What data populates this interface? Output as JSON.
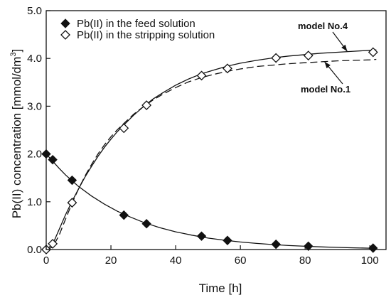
{
  "chart_data": {
    "type": "scatter",
    "xlabel": "Time [h]",
    "ylabel": "Pb(II) concentration [mmol/dm",
    "ylabel_sup": "3",
    "ylabel_end": "]",
    "xlim": [
      0,
      105
    ],
    "ylim": [
      0.0,
      5.0
    ],
    "x_ticks": [
      0,
      20,
      40,
      60,
      80,
      100
    ],
    "x_tick_labels": [
      "0",
      "20",
      "40",
      "60",
      "80",
      "100"
    ],
    "y_ticks": [
      0.0,
      1.0,
      2.0,
      3.0,
      4.0,
      5.0
    ],
    "y_tick_labels": [
      "0.0",
      "1.0",
      "2.0",
      "3.0",
      "4.0",
      "5.0"
    ],
    "grid": false,
    "legend_position": "top-left",
    "series": [
      {
        "name": "Pb(II) in the feed solution",
        "marker": "filled-diamond",
        "x": [
          0,
          2,
          8,
          24,
          31,
          48,
          56,
          71,
          81,
          101
        ],
        "y": [
          2.0,
          1.88,
          1.45,
          0.72,
          0.54,
          0.28,
          0.19,
          0.11,
          0.07,
          0.03
        ]
      },
      {
        "name": "Pb(II) in the stripping solution",
        "marker": "open-diamond",
        "x": [
          0,
          2,
          8,
          24,
          31,
          48,
          56,
          71,
          81,
          101
        ],
        "y": [
          0.0,
          0.12,
          0.98,
          2.54,
          3.02,
          3.64,
          3.79,
          4.01,
          4.06,
          4.13
        ]
      }
    ],
    "curves": [
      {
        "role": "feed model fit",
        "style": "solid",
        "x": [
          0,
          2,
          4,
          6,
          8,
          10,
          14,
          18,
          22,
          26,
          30,
          35,
          40,
          45,
          50,
          55,
          60,
          65,
          70,
          75,
          80,
          85,
          90,
          95,
          100,
          102
        ],
        "y": [
          2.0,
          1.85,
          1.7,
          1.56,
          1.44,
          1.32,
          1.12,
          0.95,
          0.8,
          0.68,
          0.57,
          0.46,
          0.37,
          0.3,
          0.24,
          0.195,
          0.158,
          0.128,
          0.104,
          0.084,
          0.068,
          0.055,
          0.045,
          0.036,
          0.029,
          0.027
        ]
      },
      {
        "role": "model No.4",
        "style": "solid",
        "x": [
          0,
          2,
          4,
          6,
          8,
          10,
          12,
          14,
          16,
          18,
          20,
          22,
          24,
          27,
          30,
          33,
          36,
          40,
          44,
          48,
          52,
          56,
          60,
          65,
          70,
          75,
          80,
          85,
          90,
          95,
          100,
          102
        ],
        "y": [
          0.0,
          0.11,
          0.42,
          0.73,
          1.01,
          1.27,
          1.52,
          1.74,
          1.95,
          2.14,
          2.31,
          2.47,
          2.61,
          2.81,
          2.99,
          3.15,
          3.28,
          3.44,
          3.57,
          3.68,
          3.76,
          3.84,
          3.9,
          3.96,
          4.01,
          4.05,
          4.08,
          4.11,
          4.13,
          4.15,
          4.17,
          4.18
        ]
      },
      {
        "role": "model No.1",
        "style": "dashed",
        "x": [
          0,
          2,
          4,
          6,
          8,
          10,
          12,
          14,
          16,
          18,
          20,
          22,
          24,
          27,
          30,
          33,
          36,
          40,
          44,
          48,
          52,
          56,
          60,
          65,
          70,
          75,
          80,
          85,
          90,
          95,
          100,
          102
        ],
        "y": [
          0.0,
          0.05,
          0.3,
          0.64,
          0.97,
          1.27,
          1.54,
          1.78,
          2.0,
          2.19,
          2.36,
          2.51,
          2.64,
          2.83,
          2.99,
          3.13,
          3.25,
          3.39,
          3.51,
          3.6,
          3.67,
          3.73,
          3.78,
          3.83,
          3.86,
          3.89,
          3.91,
          3.93,
          3.95,
          3.96,
          3.97,
          3.98
        ]
      }
    ],
    "annotations": [
      {
        "text": "model No.4",
        "target_curve": "model No.4",
        "label_position": "above-curve",
        "arrow_to": {
          "x": 93,
          "y": 4.15
        }
      },
      {
        "text": "model No.1",
        "target_curve": "model No.1",
        "label_position": "below-curve",
        "arrow_to": {
          "x": 86,
          "y": 3.93
        }
      }
    ]
  }
}
